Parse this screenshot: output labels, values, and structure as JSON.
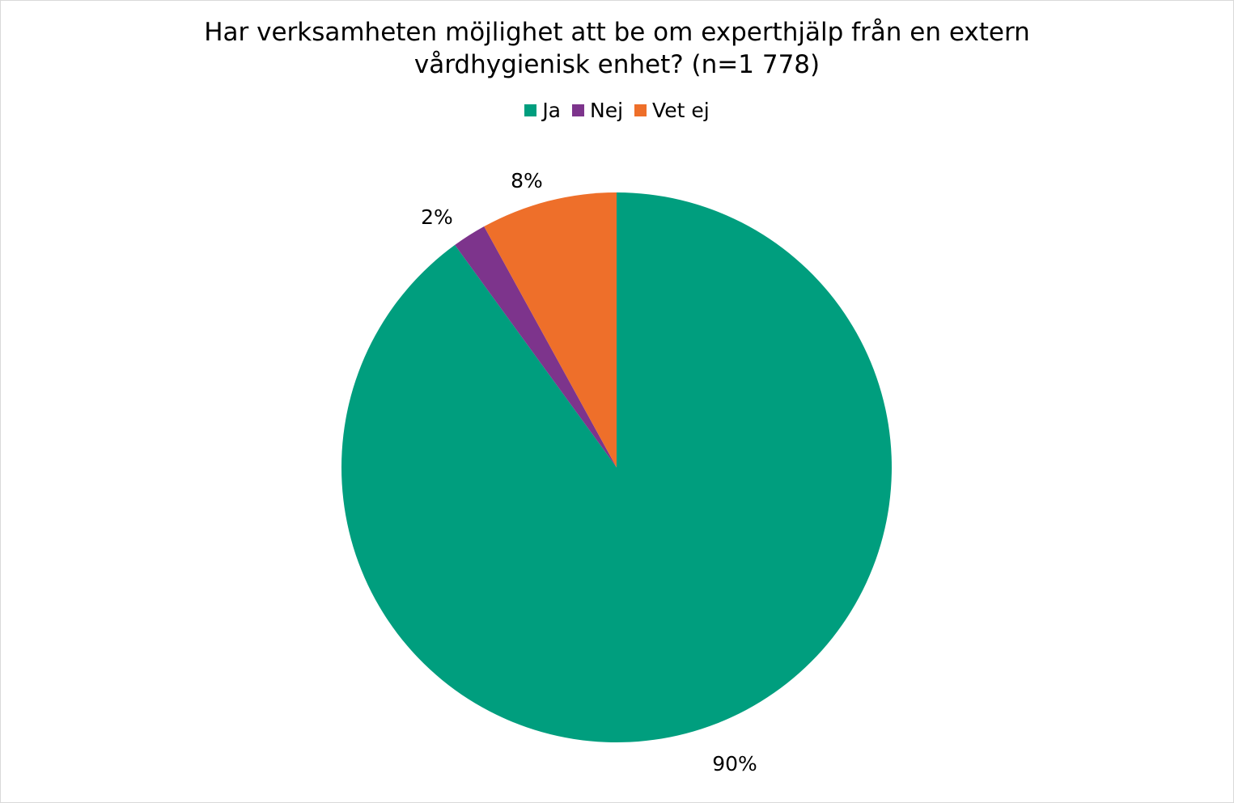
{
  "chart_data": {
    "type": "pie",
    "title_lines": [
      "Har verksamheten möjlighet att be om experthjälp från en extern",
      "vårdhygienisk enhet? (n=1 778)"
    ],
    "legend_placement": "top",
    "start_angle_deg": 0,
    "direction": "clockwise",
    "slices": [
      {
        "label": "Ja",
        "value": 90,
        "data_label": "90%",
        "color": "#009e7e"
      },
      {
        "label": "Nej",
        "value": 2,
        "data_label": "2%",
        "color": "#7d348c"
      },
      {
        "label": "Vet ej",
        "value": 8,
        "data_label": "8%",
        "color": "#ee6f2a"
      }
    ]
  }
}
